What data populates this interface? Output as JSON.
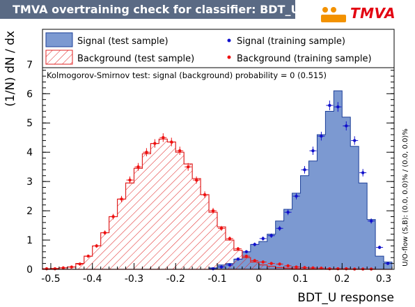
{
  "title": "TMVA overtraining check for classifier: BDT_U",
  "logo": {
    "text": "TMVA",
    "icon": "tmva-logo-icon"
  },
  "chart_data": {
    "type": "histogram",
    "xlabel": "BDT_U response",
    "ylabel": "(1/N) dN / dx",
    "xlim": [
      -0.52,
      0.325
    ],
    "ylim": [
      0,
      8.2
    ],
    "x_ticks": [
      "-0.5",
      "-0.4",
      "-0.3",
      "-0.2",
      "-0.1",
      "0",
      "0.1",
      "0.2",
      "0.3"
    ],
    "y_ticks": [
      "0",
      "1",
      "2",
      "3",
      "4",
      "5",
      "6",
      "7"
    ],
    "ks_text": "Kolmogorov-Smirnov test: signal (background) probability =     0 (0.515)",
    "overflow_text": "U/O-flow (S,B): (0.0, 0.0)% / (0.0, 0.0)%",
    "legend": {
      "signal_test": "Signal (test sample)",
      "background_test": "Background (test sample)",
      "signal_train": "Signal (training sample)",
      "background_train": "Background (training sample)"
    },
    "colors": {
      "signal_fill": "#7c99d1",
      "signal_line": "#1c3f99",
      "background_line": "#e02020",
      "signal_marker": "#1111cc",
      "background_marker": "#ee1111"
    },
    "bin_edges": [
      -0.52,
      -0.5,
      -0.48,
      -0.46,
      -0.44,
      -0.42,
      -0.4,
      -0.38,
      -0.36,
      -0.34,
      -0.32,
      -0.3,
      -0.28,
      -0.26,
      -0.24,
      -0.22,
      -0.2,
      -0.18,
      -0.16,
      -0.14,
      -0.12,
      -0.1,
      -0.08,
      -0.06,
      -0.04,
      -0.02,
      0.0,
      0.02,
      0.04,
      0.06,
      0.08,
      0.1,
      0.12,
      0.14,
      0.16,
      0.18,
      0.2,
      0.22,
      0.24,
      0.26,
      0.28,
      0.3,
      0.32
    ],
    "series": [
      {
        "name": "Signal (test sample)",
        "values": [
          0,
          0,
          0,
          0,
          0,
          0,
          0,
          0,
          0,
          0,
          0,
          0,
          0,
          0,
          0,
          0,
          0,
          0,
          0,
          0,
          0.05,
          0.15,
          0.2,
          0.35,
          0.6,
          0.85,
          0.95,
          1.2,
          1.65,
          2.05,
          2.6,
          3.2,
          3.7,
          4.6,
          5.4,
          6.1,
          5.2,
          4.2,
          2.95,
          1.7,
          0.45,
          0.25
        ]
      },
      {
        "name": "Background (test sample)",
        "values": [
          0.02,
          0.03,
          0.05,
          0.08,
          0.2,
          0.45,
          0.8,
          1.25,
          1.8,
          2.4,
          2.95,
          3.45,
          3.95,
          4.3,
          4.45,
          4.35,
          4.0,
          3.6,
          3.1,
          2.55,
          1.95,
          1.45,
          1.0,
          0.65,
          0.4,
          0.25,
          0.15,
          0.1,
          0.06,
          0.04,
          0.02,
          0.01,
          0.01,
          0,
          0,
          0,
          0,
          0,
          0,
          0,
          0,
          0
        ]
      },
      {
        "name": "Signal (training sample)",
        "values": [
          0,
          0,
          0,
          0,
          0,
          0,
          0,
          0,
          0,
          0,
          0,
          0,
          0,
          0,
          0,
          0,
          0,
          0,
          0,
          0,
          0.02,
          0.08,
          0.15,
          0.35,
          0.6,
          0.85,
          1.05,
          1.15,
          1.4,
          1.95,
          2.5,
          3.4,
          4.05,
          4.55,
          5.6,
          5.55,
          4.9,
          4.4,
          3.3,
          1.65,
          0.75,
          0.2
        ]
      },
      {
        "name": "Background (training sample)",
        "values": [
          0.02,
          0.02,
          0.05,
          0.08,
          0.18,
          0.45,
          0.8,
          1.25,
          1.8,
          2.4,
          3.05,
          3.5,
          4.0,
          4.3,
          4.5,
          4.35,
          4.05,
          3.5,
          3.05,
          2.55,
          2.0,
          1.4,
          1.05,
          0.7,
          0.45,
          0.3,
          0.25,
          0.2,
          0.18,
          0.12,
          0.08,
          0.06,
          0.05,
          0.04,
          0.02,
          0.02,
          0.02,
          0.01,
          0.01,
          0.01,
          0,
          0
        ]
      }
    ]
  }
}
